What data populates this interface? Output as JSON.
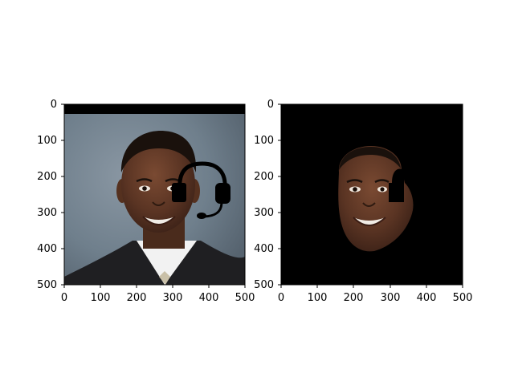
{
  "panels": [
    {
      "id": "left",
      "image": "portrait-with-headset",
      "x_ticks": [
        "0",
        "100",
        "200",
        "300",
        "400",
        "500"
      ],
      "y_ticks": [
        "0",
        "100",
        "200",
        "300",
        "400",
        "500"
      ],
      "colors": {
        "background": "#6f7f8c",
        "suit": "#1f1f22",
        "shirt": "#f2f2f2",
        "skin": "#5a3423",
        "headset": "#000000"
      }
    },
    {
      "id": "right",
      "image": "segmented-face-mask",
      "x_ticks": [
        "0",
        "100",
        "200",
        "300",
        "400",
        "500"
      ],
      "y_ticks": [
        "0",
        "100",
        "200",
        "300",
        "400",
        "500"
      ],
      "colors": {
        "background": "#000000",
        "skin": "#5a3423"
      }
    }
  ]
}
